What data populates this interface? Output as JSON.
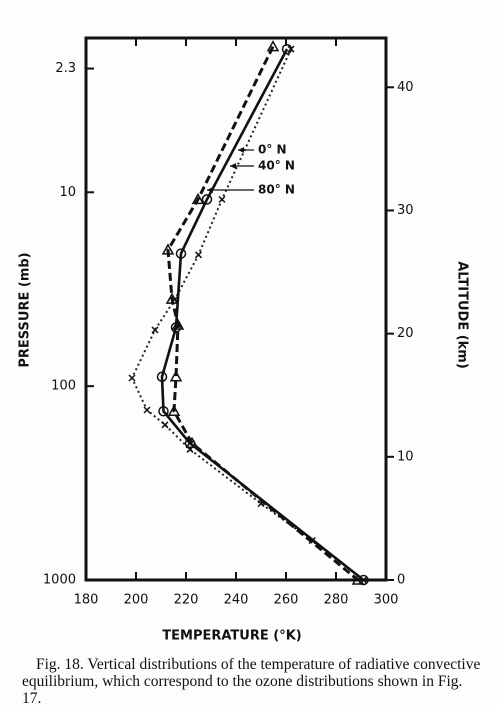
{
  "chart_data": {
    "type": "line",
    "xlabel": "TEMPERATURE (°K)",
    "ylabel": "PRESSURE (mb)",
    "y2label": "ALTITUDE (km)",
    "caption": "Fig. 18. Vertical distributions of the temperature of radiative convective equilibrium, which correspond to the ozone distributions shown in Fig. 17.",
    "xlim": [
      180,
      300
    ],
    "xticks": [
      180,
      200,
      220,
      240,
      260,
      280,
      300
    ],
    "ylim": [
      1000,
      1.6
    ],
    "yscale": "log",
    "yticks": [
      1000,
      100,
      10,
      2.3
    ],
    "y2lim": [
      0,
      44
    ],
    "y2ticks": [
      0,
      10,
      20,
      30,
      40
    ],
    "series": [
      {
        "name": "0° N",
        "color": "#222",
        "dash": "dotted",
        "marker": "x",
        "axis": "y2",
        "x": [
          262,
          234.4,
          225,
          215.6,
          207.6,
          198.4,
          204.4,
          211.6,
          221.6,
          250,
          270.5,
          291
        ],
        "values": [
          43.1,
          30.9,
          26.4,
          22.8,
          20.3,
          16.4,
          13.8,
          12.6,
          10.6,
          6.2,
          3.2,
          0
        ]
      },
      {
        "name": "40° N",
        "color": "#111",
        "dash": "solid",
        "marker": "circle",
        "axis": "y2",
        "x": [
          260.4,
          228.4,
          218,
          216,
          210.4,
          211,
          221.6,
          291
        ],
        "values": [
          43.1,
          30.9,
          26.5,
          20.5,
          16.5,
          13.7,
          11.1,
          0
        ]
      },
      {
        "name": "80° N",
        "color": "#111",
        "dash": "dashed",
        "marker": "triangle",
        "axis": "y2",
        "x": [
          254.8,
          224.8,
          212.8,
          214.4,
          216.8,
          216,
          215.2,
          222.4,
          288.8
        ],
        "values": [
          43.3,
          30.9,
          26.8,
          22.8,
          20.7,
          16.5,
          13.7,
          11.1,
          0
        ]
      }
    ]
  }
}
